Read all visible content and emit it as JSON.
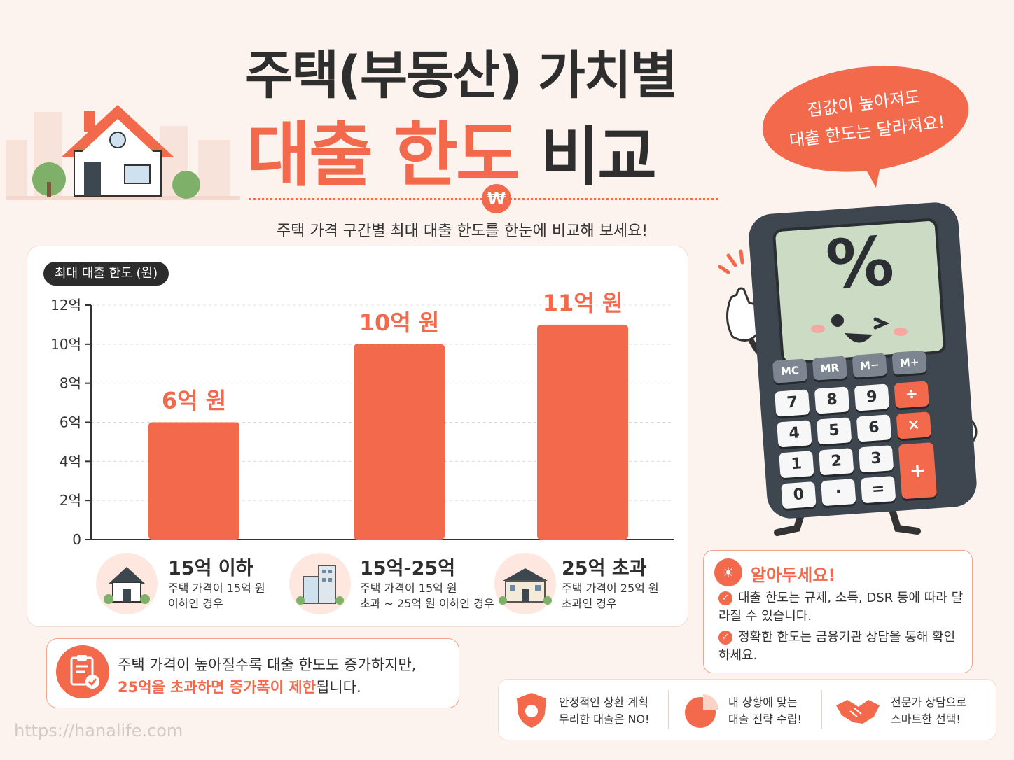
{
  "title_line1": "주택(부동산) 가치별",
  "title_line2_accent": "대출 한도",
  "title_line2_rest": "비교",
  "won_symbol": "₩",
  "subtitle": "주택 가격 구간별 최대 대출 한도를 한눈에 비교해 보세요!",
  "bubble": {
    "line1": "집값이 높아져도",
    "line2": "대출 한도는 달라져요!"
  },
  "chart_data": {
    "type": "bar",
    "y_pill_label": "최대 대출 한도 (원)",
    "ylim": [
      0,
      12
    ],
    "yticks": [
      "0",
      "2억",
      "4억",
      "6억",
      "8억",
      "10억",
      "12억"
    ],
    "categories": [
      "15억 이하",
      "15억-25억",
      "25억 초과"
    ],
    "values": [
      6,
      10,
      11
    ],
    "data_labels": [
      "6억 원",
      "10억 원",
      "11억 원"
    ],
    "bar_color": "#f2694b",
    "grid": true
  },
  "categories_info": [
    {
      "title": "15억 이하",
      "desc1": "주택 가격이 15억 원",
      "desc2": "이하인 경우",
      "icon": "house-icon"
    },
    {
      "title": "15억-25억",
      "desc1": "주택 가격이 15억 원",
      "desc2": "초과 ~ 25억 원 이하인 경우",
      "icon": "apartment-icon"
    },
    {
      "title": "25억 초과",
      "desc1": "주택 가격이 25억 원",
      "desc2": "초과인 경우",
      "icon": "mansion-icon"
    }
  ],
  "calculator": {
    "display": "%",
    "memory_keys": [
      "MC",
      "MR",
      "M−",
      "M+"
    ],
    "rows": [
      [
        "7",
        "8",
        "9",
        "÷"
      ],
      [
        "4",
        "5",
        "6",
        "×"
      ],
      [
        "1",
        "2",
        "3",
        "+"
      ],
      [
        "0",
        "·",
        "="
      ]
    ]
  },
  "note": {
    "title": "알아두세요!",
    "items": [
      "대출 한도는 규제, 소득, DSR 등에 따라 달라질 수 있습니다.",
      "정확한 한도는 금융기관 상담을 통해 확인하세요."
    ]
  },
  "summary": {
    "line1": "주택 가격이 높아질수록 대출 한도도 증가하지만,",
    "line2_hl1": "25억을 초과하면 ",
    "line2_hl2": "증가폭이 제한",
    "line2_end": "됩니다."
  },
  "footer": [
    {
      "line1": "안정적인 상환 계획",
      "line2": "무리한 대출은 NO!",
      "icon": "shield-icon"
    },
    {
      "line1": "내 상황에 맞는",
      "line2": "대출 전략 수립!",
      "icon": "pie-chart-icon"
    },
    {
      "line1": "전문가 상담으로",
      "line2": "스마트한 선택!",
      "icon": "handshake-icon"
    }
  ],
  "url": "https://hanalife.com",
  "colors": {
    "accent": "#f2694b",
    "background": "#fcf3ee",
    "dark": "#2e2e2e"
  }
}
